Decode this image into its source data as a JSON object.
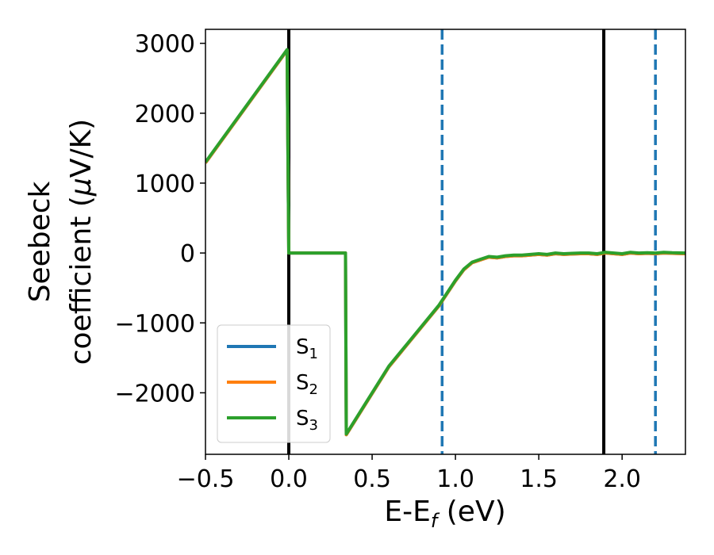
{
  "chart_data": {
    "type": "line",
    "title": "",
    "xlabel": {
      "main": "E-E",
      "sub": "f",
      "suffix": " (eV)"
    },
    "ylabel": {
      "line1": "Seebeck",
      "line2_prefix": "coefficient  (",
      "mu": "μ",
      "line2_suffix": "V/K)"
    },
    "xlim": [
      -0.5,
      2.38
    ],
    "ylim": [
      -2880,
      3200
    ],
    "xticks": [
      -0.5,
      0.0,
      0.5,
      1.0,
      1.5,
      2.0
    ],
    "xtick_labels": [
      "−0.5",
      "0.0",
      "0.5",
      "1.0",
      "1.5",
      "2.0"
    ],
    "yticks": [
      3000,
      2000,
      1000,
      0,
      -1000,
      -2000
    ],
    "ytick_labels": [
      "3000",
      "2000",
      "1000",
      "0",
      "−1000",
      "−2000"
    ],
    "grid": false,
    "legend_position": "lower-left",
    "vertical_lines": [
      {
        "x": 0.0,
        "style": "solid",
        "color": "#000000"
      },
      {
        "x": 1.89,
        "style": "solid",
        "color": "#000000"
      },
      {
        "x": 0.92,
        "style": "dashed",
        "color": "#1f77b4"
      },
      {
        "x": 2.2,
        "style": "dashed",
        "color": "#1f77b4"
      }
    ],
    "series": [
      {
        "name": "S",
        "sub": "1",
        "color": "#1f77b4",
        "x": [
          -0.5,
          -0.01,
          0.0,
          0.34,
          0.345,
          0.6,
          0.9,
          1.0,
          1.05,
          1.1,
          1.15,
          1.2,
          1.25,
          1.3,
          1.35,
          1.4,
          1.45,
          1.5,
          1.55,
          1.6,
          1.65,
          1.7,
          1.75,
          1.8,
          1.85,
          1.9,
          1.95,
          2.0,
          2.05,
          2.1,
          2.15,
          2.2,
          2.25,
          2.3,
          2.38
        ],
        "y": [
          1290,
          2900,
          0,
          0,
          -2600,
          -1630,
          -760,
          -400,
          -240,
          -140,
          -100,
          -60,
          -70,
          -50,
          -40,
          -40,
          -30,
          -20,
          -30,
          -10,
          -20,
          -15,
          -10,
          -10,
          -20,
          0,
          -10,
          -20,
          0,
          -10,
          -5,
          -10,
          0,
          -5,
          -10
        ]
      },
      {
        "name": "S",
        "sub": "2",
        "color": "#ff7f0e",
        "x": [
          -0.5,
          -0.01,
          0.0,
          0.34,
          0.345,
          0.6,
          0.9,
          1.0,
          1.05,
          1.1,
          1.15,
          1.2,
          1.25,
          1.3,
          1.35,
          1.4,
          1.45,
          1.5,
          1.55,
          1.6,
          1.65,
          1.7,
          1.75,
          1.8,
          1.85,
          1.9,
          1.95,
          2.0,
          2.05,
          2.1,
          2.15,
          2.2,
          2.25,
          2.3,
          2.38
        ],
        "y": [
          1290,
          2900,
          0,
          0,
          -2600,
          -1630,
          -760,
          -400,
          -240,
          -140,
          -100,
          -60,
          -70,
          -50,
          -40,
          -40,
          -30,
          -20,
          -30,
          -10,
          -20,
          -15,
          -10,
          -10,
          -20,
          0,
          -10,
          -20,
          0,
          -10,
          -5,
          -10,
          0,
          -5,
          -10
        ]
      },
      {
        "name": "S",
        "sub": "3",
        "color": "#2ca02c",
        "x": [
          -0.5,
          -0.01,
          0.0,
          0.34,
          0.345,
          0.6,
          0.9,
          1.0,
          1.05,
          1.1,
          1.15,
          1.2,
          1.25,
          1.3,
          1.35,
          1.4,
          1.45,
          1.5,
          1.55,
          1.6,
          1.65,
          1.7,
          1.75,
          1.8,
          1.85,
          1.9,
          1.95,
          2.0,
          2.05,
          2.1,
          2.15,
          2.2,
          2.25,
          2.3,
          2.38
        ],
        "y": [
          1300,
          2910,
          0,
          0,
          -2590,
          -1620,
          -750,
          -390,
          -230,
          -130,
          -90,
          -50,
          -60,
          -40,
          -30,
          -30,
          -20,
          -10,
          -20,
          0,
          -10,
          -5,
          0,
          0,
          -10,
          10,
          0,
          -10,
          10,
          0,
          5,
          0,
          10,
          5,
          0
        ]
      }
    ]
  }
}
